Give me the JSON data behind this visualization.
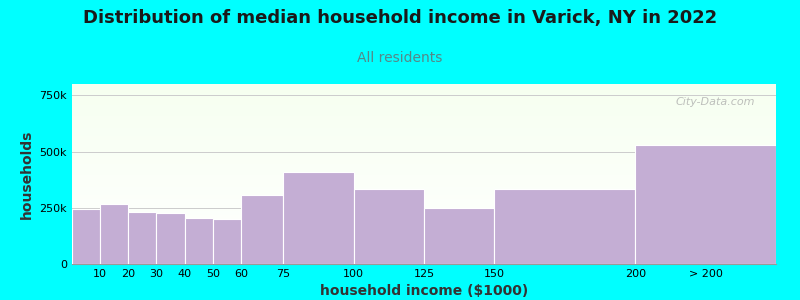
{
  "title": "Distribution of median household income in Varick, NY in 2022",
  "subtitle": "All residents",
  "xlabel": "household income ($1000)",
  "ylabel": "households",
  "background_color": "#00FFFF",
  "bar_color": "#C4AED4",
  "bar_edge_color": "#ffffff",
  "watermark": "City-Data.com",
  "bin_edges": [
    0,
    10,
    20,
    30,
    40,
    50,
    60,
    75,
    100,
    125,
    150,
    200,
    250
  ],
  "bin_labels": [
    "10",
    "20",
    "30",
    "40",
    "50",
    "60",
    "75",
    "100",
    "125",
    "150",
    "200",
    "> 200"
  ],
  "values": [
    245000,
    265000,
    230000,
    225000,
    205000,
    200000,
    305000,
    410000,
    335000,
    250000,
    335000,
    530000
  ],
  "ylim": [
    0,
    800000
  ],
  "yticks": [
    0,
    250000,
    500000,
    750000
  ],
  "ytick_labels": [
    "0",
    "250k",
    "500k",
    "750k"
  ],
  "title_fontsize": 13,
  "subtitle_fontsize": 10,
  "subtitle_color": "#558888",
  "axis_label_fontsize": 10,
  "tick_fontsize": 8
}
